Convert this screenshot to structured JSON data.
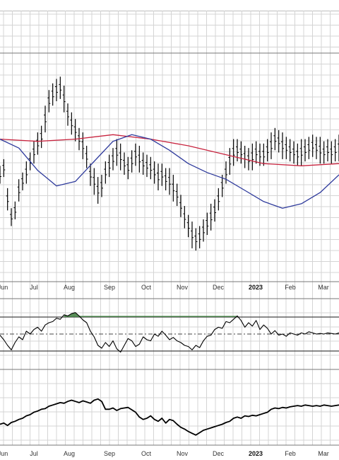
{
  "chart_data": {
    "type": "line",
    "grid": true,
    "x_tick_labels": [
      "Jun",
      "Jul",
      "Aug",
      "Sep",
      "Oct",
      "Nov",
      "Dec",
      "2023",
      "Feb",
      "Mar"
    ],
    "bold_tick": "2023",
    "panes": [
      {
        "id": "price",
        "type": "ohlc-bars",
        "ylim": [
          0,
          100
        ],
        "series": [
          {
            "id": "price-bars",
            "color": "#000000",
            "x": [
              0,
              3,
              6,
              9,
              12,
              15,
              18,
              21,
              24,
              27,
              30,
              33,
              36,
              39,
              42,
              45,
              48,
              51,
              54,
              57,
              60,
              63,
              66,
              69,
              72,
              75,
              78,
              81,
              84,
              87,
              90,
              93,
              96,
              99,
              102,
              105,
              108,
              111,
              114,
              117,
              120,
              123,
              126,
              129,
              132,
              135,
              138,
              141,
              144,
              147,
              150,
              153,
              156,
              159,
              162,
              165,
              168,
              171,
              174,
              177,
              180,
              183,
              186,
              189,
              192,
              195,
              198,
              201,
              204,
              207,
              210,
              213,
              216,
              219,
              222,
              225,
              228,
              231,
              234,
              237,
              240,
              243,
              246,
              249,
              252,
              255,
              258,
              261,
              264,
              267,
              270
            ],
            "values": [
              47,
              50,
              36,
              28,
              31,
              40,
              44,
              48,
              53,
              57,
              61,
              64,
              72,
              80,
              83,
              85,
              86,
              81,
              74,
              70,
              67,
              63,
              60,
              55,
              47,
              44,
              40,
              42,
              48,
              51,
              54,
              57,
              55,
              52,
              50,
              53,
              56,
              54,
              52,
              51,
              50,
              48,
              46,
              47,
              45,
              44,
              41,
              38,
              33,
              28,
              24,
              20,
              18,
              19,
              22,
              25,
              28,
              31,
              36,
              42,
              48,
              53,
              57,
              58,
              57,
              55,
              54,
              55,
              57,
              56,
              56,
              58,
              60,
              63,
              62,
              60,
              59,
              58,
              57,
              56,
              57,
              58,
              59,
              60,
              59,
              58,
              57,
              58,
              57,
              58,
              59
            ],
            "range": [
              4,
              4,
              5,
              4,
              4,
              5,
              4,
              5,
              4,
              5,
              5,
              5,
              6,
              5,
              5,
              5,
              5,
              6,
              5,
              5,
              5,
              5,
              6,
              5,
              5,
              6,
              6,
              5,
              5,
              5,
              5,
              6,
              6,
              5,
              5,
              5,
              5,
              6,
              5,
              5,
              5,
              5,
              6,
              5,
              5,
              6,
              6,
              5,
              5,
              5,
              5,
              6,
              5,
              5,
              5,
              5,
              6,
              5,
              5,
              5,
              5,
              6,
              6,
              5,
              5,
              5,
              5,
              6,
              5,
              5,
              5,
              5,
              6,
              5,
              5,
              6,
              5,
              5,
              5,
              5,
              6,
              5,
              5,
              5,
              5,
              6,
              5,
              5,
              5,
              5,
              6
            ]
          },
          {
            "id": "ma-long",
            "color": "#c8243f",
            "x": [
              0,
              30,
              60,
              90,
              120,
              150,
              180,
              210,
              240,
              270
            ],
            "values": [
              63,
              62,
              63,
              65,
              63,
              60,
              56,
              52,
              51,
              52
            ]
          },
          {
            "id": "ma-short",
            "color": "#2e3a9c",
            "x": [
              0,
              15,
              30,
              45,
              60,
              75,
              90,
              105,
              120,
              135,
              150,
              165,
              180,
              195,
              210,
              225,
              240,
              255,
              270
            ],
            "values": [
              63,
              59,
              49,
              42,
              44,
              53,
              62,
              65,
              63,
              58,
              52,
              48,
              45,
              40,
              35,
              32,
              34,
              39,
              47
            ]
          }
        ]
      },
      {
        "id": "oscillator",
        "type": "line",
        "ylim": [
          0,
          100
        ],
        "bands": [
          80,
          50,
          20
        ],
        "overbought_fill": "#3b7a3b",
        "series": [
          {
            "id": "oscillator-line",
            "color": "#000000",
            "x": [
              0,
              3,
              6,
              9,
              12,
              15,
              18,
              21,
              24,
              27,
              30,
              33,
              36,
              39,
              42,
              45,
              48,
              51,
              54,
              57,
              60,
              63,
              66,
              69,
              72,
              75,
              78,
              81,
              84,
              87,
              90,
              93,
              96,
              99,
              102,
              105,
              108,
              111,
              114,
              117,
              120,
              123,
              126,
              129,
              132,
              135,
              138,
              141,
              144,
              147,
              150,
              153,
              156,
              159,
              162,
              165,
              168,
              171,
              174,
              177,
              180,
              183,
              186,
              189,
              192,
              195,
              198,
              201,
              204,
              207,
              210,
              213,
              216,
              219,
              222,
              225,
              228,
              231,
              234,
              237,
              240,
              243,
              246,
              249,
              252,
              255,
              258,
              261,
              264,
              267,
              270
            ],
            "values": [
              48,
              40,
              30,
              22,
              35,
              45,
              40,
              55,
              50,
              58,
              62,
              55,
              66,
              70,
              72,
              78,
              76,
              84,
              82,
              86,
              88,
              82,
              75,
              70,
              55,
              45,
              30,
              25,
              35,
              28,
              38,
              24,
              18,
              30,
              42,
              38,
              28,
              32,
              45,
              40,
              38,
              50,
              46,
              55,
              48,
              40,
              44,
              38,
              35,
              30,
              28,
              22,
              30,
              26,
              38,
              46,
              48,
              58,
              62,
              60,
              72,
              70,
              76,
              82,
              74,
              62,
              70,
              64,
              74,
              58,
              66,
              60,
              50,
              56,
              48,
              50,
              46,
              52,
              50,
              48,
              52,
              50,
              54,
              52,
              50,
              51,
              50,
              52,
              51,
              50,
              52
            ]
          }
        ]
      },
      {
        "id": "relative-strength",
        "type": "line",
        "ylim": [
          0,
          100
        ],
        "series": [
          {
            "id": "rs-line",
            "color": "#000000",
            "x": [
              0,
              3,
              6,
              9,
              12,
              15,
              18,
              21,
              24,
              27,
              30,
              33,
              36,
              39,
              42,
              45,
              48,
              51,
              54,
              57,
              60,
              63,
              66,
              69,
              72,
              75,
              78,
              81,
              84,
              87,
              90,
              93,
              96,
              99,
              102,
              105,
              108,
              111,
              114,
              117,
              120,
              123,
              126,
              129,
              132,
              135,
              138,
              141,
              144,
              147,
              150,
              153,
              156,
              159,
              162,
              165,
              168,
              171,
              174,
              177,
              180,
              183,
              186,
              189,
              192,
              195,
              198,
              201,
              204,
              207,
              210,
              213,
              216,
              219,
              222,
              225,
              228,
              231,
              234,
              237,
              240,
              243,
              246,
              249,
              252,
              255,
              258,
              261,
              264,
              267,
              270
            ],
            "values": [
              30,
              32,
              28,
              33,
              35,
              38,
              40,
              44,
              46,
              50,
              52,
              55,
              56,
              60,
              62,
              64,
              66,
              65,
              68,
              70,
              68,
              66,
              69,
              67,
              65,
              70,
              72,
              68,
              55,
              55,
              57,
              53,
              56,
              57,
              58,
              54,
              50,
              42,
              38,
              40,
              44,
              38,
              35,
              40,
              32,
              38,
              36,
              30,
              25,
              22,
              18,
              15,
              12,
              16,
              20,
              22,
              24,
              26,
              28,
              30,
              33,
              35,
              40,
              42,
              40,
              44,
              43,
              45,
              44,
              46,
              48,
              50,
              55,
              57,
              56,
              58,
              57,
              59,
              60,
              61,
              60,
              62,
              61,
              60,
              61,
              60,
              62,
              61,
              60,
              61,
              62
            ]
          }
        ]
      }
    ]
  }
}
